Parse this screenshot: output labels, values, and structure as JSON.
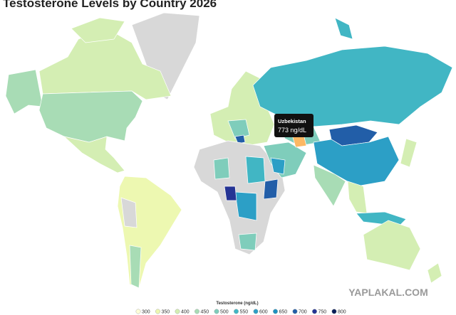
{
  "title": "Testosterone Levels by Country 2026",
  "tooltip": {
    "country": "Uzbekistan",
    "value": "773 ng/dL"
  },
  "legend": {
    "title": "Testosterone (ng/dL)",
    "items": [
      {
        "value": 300,
        "color": "#ffffd9"
      },
      {
        "value": 350,
        "color": "#edf8b1"
      },
      {
        "value": 400,
        "color": "#d4eeb3"
      },
      {
        "value": 450,
        "color": "#a8dcb5"
      },
      {
        "value": 500,
        "color": "#7fcdbb"
      },
      {
        "value": 550,
        "color": "#41b6c4"
      },
      {
        "value": 600,
        "color": "#2c9fc6"
      },
      {
        "value": 650,
        "color": "#1d91c0"
      },
      {
        "value": 700,
        "color": "#225ea8"
      },
      {
        "value": 750,
        "color": "#253494"
      },
      {
        "value": 800,
        "color": "#081d58"
      }
    ]
  },
  "watermark": "YAPLAKAL.COM"
}
